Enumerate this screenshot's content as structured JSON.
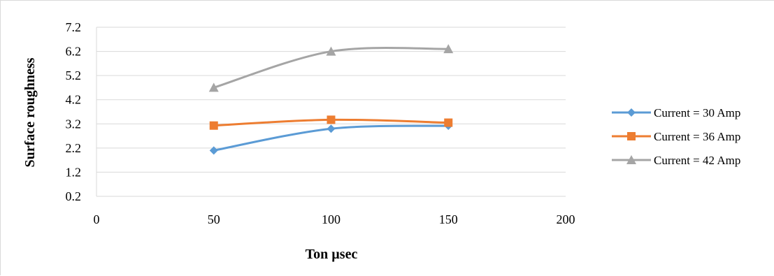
{
  "chart_data": {
    "type": "line",
    "xlabel": "Ton µsec",
    "ylabel": "Surface roughness",
    "xlim": [
      0,
      200
    ],
    "ylim": [
      0.2,
      7.2
    ],
    "xticks": [
      0,
      50,
      100,
      150,
      200
    ],
    "yticks": [
      0.2,
      1.2,
      2.2,
      3.2,
      4.2,
      5.2,
      6.2,
      7.2
    ],
    "ytick_labels": [
      "0.2",
      "1.2",
      "2.2",
      "3.2",
      "4.2",
      "5.2",
      "6.2",
      "7.2"
    ],
    "grid": "horizontal",
    "legend_position": "right",
    "smooth": true,
    "series": [
      {
        "name": "Current = 30 Amp",
        "color": "#5b9bd5",
        "marker": "diamond",
        "points": [
          [
            50,
            2.1
          ],
          [
            100,
            3.0
          ],
          [
            150,
            3.12
          ]
        ]
      },
      {
        "name": "Current = 36 Amp",
        "color": "#ed7d31",
        "marker": "square",
        "points": [
          [
            50,
            3.13
          ],
          [
            100,
            3.37
          ],
          [
            150,
            3.25
          ]
        ]
      },
      {
        "name": "Current = 42 Amp",
        "color": "#a5a5a5",
        "marker": "triangle",
        "points": [
          [
            50,
            4.7
          ],
          [
            100,
            6.2
          ],
          [
            150,
            6.3
          ]
        ]
      }
    ]
  }
}
